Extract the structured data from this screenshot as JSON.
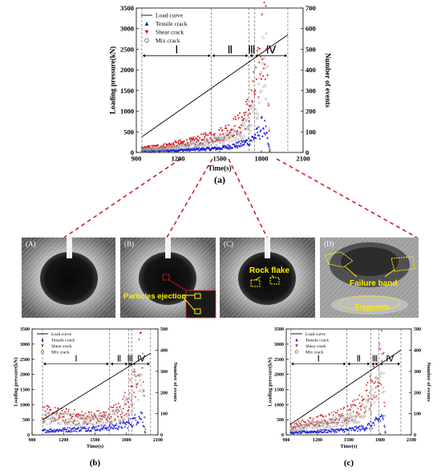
{
  "chart_data": [
    {
      "id": "a",
      "type": "scatter",
      "panel_label": "(a)",
      "xlabel": "Time(s)",
      "ylabel": "Loading pressure(kN)",
      "y2label": "Number of events",
      "xlim": [
        900,
        2100
      ],
      "ylim": [
        0,
        3500
      ],
      "y2lim": [
        0,
        700
      ],
      "x_ticks": [
        "900",
        "1200",
        "1500",
        "1800",
        "2100"
      ],
      "y_ticks": [
        "0",
        "500",
        "1000",
        "1500",
        "2000",
        "2500",
        "3000",
        "3500"
      ],
      "y2_ticks": [
        "0",
        "100",
        "200",
        "300",
        "400",
        "500",
        "600",
        "700"
      ],
      "phase_labels": [
        "Ⅰ",
        "Ⅱ",
        "Ⅲ",
        "Ⅳ"
      ],
      "phase_boundaries": [
        940,
        1440,
        1710,
        1750,
        1990
      ],
      "legend": [
        "Load curve",
        "Tensile crack",
        "Shear crack",
        "Mix crack"
      ],
      "load_curve": {
        "x": [
          940,
          1990
        ],
        "y": [
          380,
          2850
        ]
      },
      "series": [
        {
          "name": "Tensile crack",
          "x": [
            940,
            1100,
            1300,
            1500,
            1650,
            1720,
            1780,
            1800,
            1820,
            1860
          ],
          "y": [
            8,
            10,
            15,
            22,
            40,
            60,
            95,
            125,
            130,
            10
          ]
        },
        {
          "name": "Shear crack",
          "x": [
            940,
            1100,
            1300,
            1500,
            1650,
            1720,
            1780,
            1810,
            1840,
            1860
          ],
          "y": [
            18,
            30,
            50,
            85,
            140,
            220,
            380,
            560,
            600,
            15
          ]
        },
        {
          "name": "Mix crack",
          "x": [
            940,
            1100,
            1300,
            1500,
            1650,
            1720,
            1780,
            1810,
            1840,
            1860
          ],
          "y": [
            12,
            20,
            35,
            55,
            95,
            150,
            270,
            410,
            420,
            10
          ]
        }
      ]
    },
    {
      "id": "b",
      "type": "scatter",
      "panel_label": "(b)",
      "xlabel": "Time(s)",
      "ylabel": "Loading pressure(kN)",
      "y2label": "Number of events",
      "xlim": [
        900,
        2100
      ],
      "ylim": [
        0,
        3500
      ],
      "y2lim": [
        0,
        500
      ],
      "x_ticks": [
        "900",
        "1200",
        "1500",
        "1800",
        "2100"
      ],
      "y_ticks": [
        "0",
        "500",
        "1000",
        "1500",
        "2000",
        "2500",
        "3000",
        "3500"
      ],
      "y2_ticks": [
        "0",
        "100",
        "200",
        "300",
        "400",
        "500"
      ],
      "phase_labels": [
        "Ⅰ",
        "Ⅱ",
        "Ⅲ",
        "Ⅳ"
      ],
      "phase_boundaries": [
        1000,
        1640,
        1820,
        1850,
        2030
      ],
      "legend": [
        "Load curve",
        "Tensile crack",
        "Shear crack",
        "Mix crack"
      ],
      "load_curve": {
        "x": [
          1000,
          2030
        ],
        "y": [
          500,
          2700
        ]
      },
      "series": [
        {
          "name": "Tensile crack",
          "x": [
            1000,
            1200,
            1400,
            1600,
            1750,
            1850,
            1900,
            1950,
            1980
          ],
          "y": [
            20,
            25,
            30,
            35,
            45,
            60,
            80,
            95,
            10
          ]
        },
        {
          "name": "Shear crack",
          "x": [
            1000,
            1200,
            1400,
            1600,
            1750,
            1850,
            1900,
            1950,
            1980
          ],
          "y": [
            100,
            90,
            80,
            85,
            120,
            200,
            300,
            380,
            20
          ]
        },
        {
          "name": "Mix crack",
          "x": [
            1000,
            1200,
            1400,
            1600,
            1750,
            1850,
            1900,
            1950,
            1980
          ],
          "y": [
            80,
            75,
            70,
            75,
            100,
            170,
            250,
            320,
            15
          ]
        }
      ]
    },
    {
      "id": "c",
      "type": "scatter",
      "panel_label": "(c)",
      "xlabel": "Time(s)",
      "ylabel": "Loading pressure(kN)",
      "y2label": "Number of events",
      "xlim": [
        900,
        2100
      ],
      "ylim": [
        0,
        3500
      ],
      "y2lim": [
        0,
        500
      ],
      "x_ticks": [
        "900",
        "1200",
        "1500",
        "1800",
        "2100"
      ],
      "y_ticks": [
        "0",
        "500",
        "1000",
        "1500",
        "2000",
        "2500",
        "3000",
        "3500"
      ],
      "y2_ticks": [
        "0",
        "100",
        "200",
        "300",
        "400",
        "500"
      ],
      "phase_labels": [
        "Ⅰ",
        "Ⅱ",
        "Ⅲ",
        "Ⅳ"
      ],
      "phase_boundaries": [
        940,
        1480,
        1710,
        1790,
        2000
      ],
      "legend": [
        "Load curve",
        "Tensile crack",
        "Shear crack",
        "Mix crack"
      ],
      "load_curve": {
        "x": [
          940,
          2000
        ],
        "y": [
          350,
          2800
        ]
      },
      "series": [
        {
          "name": "Tensile crack",
          "x": [
            940,
            1100,
            1300,
            1500,
            1650,
            1750,
            1800,
            1830,
            1850
          ],
          "y": [
            10,
            15,
            20,
            25,
            35,
            55,
            80,
            90,
            10
          ]
        },
        {
          "name": "Shear crack",
          "x": [
            940,
            1100,
            1300,
            1500,
            1650,
            1750,
            1800,
            1830,
            1850
          ],
          "y": [
            40,
            55,
            75,
            100,
            150,
            250,
            350,
            410,
            15
          ]
        },
        {
          "name": "Mix crack",
          "x": [
            940,
            1100,
            1300,
            1500,
            1650,
            1750,
            1800,
            1830,
            1850
          ],
          "y": [
            30,
            40,
            55,
            75,
            110,
            190,
            270,
            320,
            10
          ]
        }
      ]
    }
  ],
  "photos": [
    {
      "label": "(A)",
      "annotations": []
    },
    {
      "label": "(B)",
      "annotations": [
        "Particles ejection"
      ]
    },
    {
      "label": "(C)",
      "annotations": [
        "Rock flake"
      ]
    },
    {
      "label": "(D)",
      "annotations": [
        "Failure band",
        "Fragments"
      ]
    }
  ],
  "colors": {
    "tensile": "#1a1ad6",
    "shear": "#d41818",
    "mix": "#9a9a9a",
    "load_curve": "#000000",
    "connector": "#d0202a",
    "annotation": "#ffee00"
  }
}
